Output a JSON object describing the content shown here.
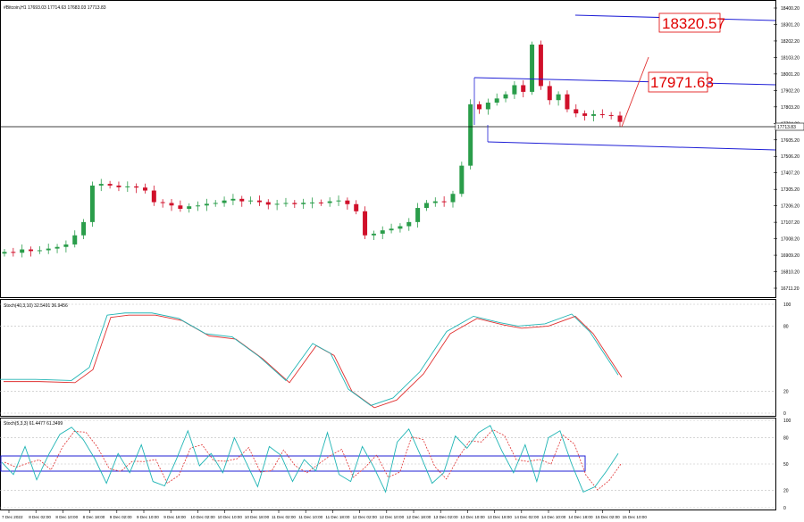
{
  "colors": {
    "bull": "#2a9d4a",
    "bear": "#d0102a",
    "line": "#1f1fd6",
    "stoch_main": "#20b5b5",
    "stoch_signal": "#e03030",
    "crosshair": "#000000",
    "annotation": "#e00000"
  },
  "main": {
    "header": "#Bitcoin,H1  17693.03 17714.63 17683.03 17713.83",
    "y_ticks": [
      "18400.20",
      "18301.20",
      "18202.20",
      "18103.20",
      "18001.20",
      "17902.20",
      "17803.20",
      "17704.20",
      "17605.20",
      "17506.20",
      "17407.20",
      "17305.20",
      "17206.20",
      "17107.20",
      "17008.20",
      "16909.20",
      "16810.20",
      "16711.20"
    ],
    "current_price": "17713.83",
    "annotations": [
      {
        "id": "target-high",
        "text": "18320.57"
      },
      {
        "id": "target-mid",
        "text": "17971.63"
      }
    ]
  },
  "stoch1": {
    "header": "Stoch(40,3,10) 32.5491 36.9456",
    "levels": [
      "100",
      "80",
      "20",
      "0"
    ]
  },
  "stoch2": {
    "header": "Stoch(5,3,3) 61.4477 61.3499",
    "levels": [
      "100",
      "80",
      "50",
      "20",
      "0"
    ]
  },
  "x_labels": [
    "7 Dec 2022",
    "8 Dec 02:00",
    "8 Dec 10:00",
    "8 Dec 18:00",
    "9 Dec 02:00",
    "9 Dec 10:00",
    "9 Dec 18:00",
    "10 Dec 02:00",
    "10 Dec 10:00",
    "10 Dec 18:00",
    "11 Dec 02:00",
    "11 Dec 10:00",
    "11 Dec 18:00",
    "12 Dec 02:00",
    "12 Dec 10:00",
    "12 Dec 18:00",
    "13 Dec 02:00",
    "13 Dec 10:00",
    "13 Dec 18:00",
    "14 Dec 02:00",
    "14 Dec 10:00",
    "14 Dec 18:00",
    "15 Dec 02:00",
    "15 Dec 10:00"
  ],
  "chart_data": {
    "type": "candlestick",
    "symbol": "#Bitcoin",
    "timeframe": "H1",
    "close_path": [
      16930,
      16925,
      16945,
      16935,
      16940,
      16950,
      16960,
      16975,
      17030,
      17110,
      17330,
      17340,
      17330,
      17320,
      17325,
      17318,
      17300,
      17230,
      17225,
      17210,
      17190,
      17205,
      17210,
      17220,
      17225,
      17240,
      17250,
      17235,
      17240,
      17230,
      17215,
      17220,
      17225,
      17218,
      17226,
      17228,
      17225,
      17235,
      17240,
      17218,
      17175,
      17030,
      17040,
      17060,
      17070,
      17085,
      17110,
      17195,
      17225,
      17235,
      17230,
      17280,
      17450,
      17820,
      17790,
      17830,
      17855,
      17880,
      17935,
      17895,
      18180,
      17930,
      17845,
      17880,
      17790,
      17765,
      17750,
      17760,
      17755,
      17752,
      17713.83
    ],
    "trend_lines": [
      {
        "from": [
          "13 Dec 10:00",
          18000
        ],
        "to": [
          "15 Dec 20:00",
          17930
        ]
      },
      {
        "from": [
          "14 Dec 18:00",
          18330
        ],
        "to": [
          "15 Dec 20:00",
          18300
        ]
      },
      {
        "from": [
          "13 Dec 12:00",
          17642
        ],
        "to": [
          "15 Dec 20:00",
          17575
        ]
      }
    ],
    "stoch_40_3_10": {
      "main": 32.5491,
      "signal": 36.9456
    },
    "stoch_5_3_3": {
      "main": 61.4477,
      "signal": 61.3499
    }
  }
}
